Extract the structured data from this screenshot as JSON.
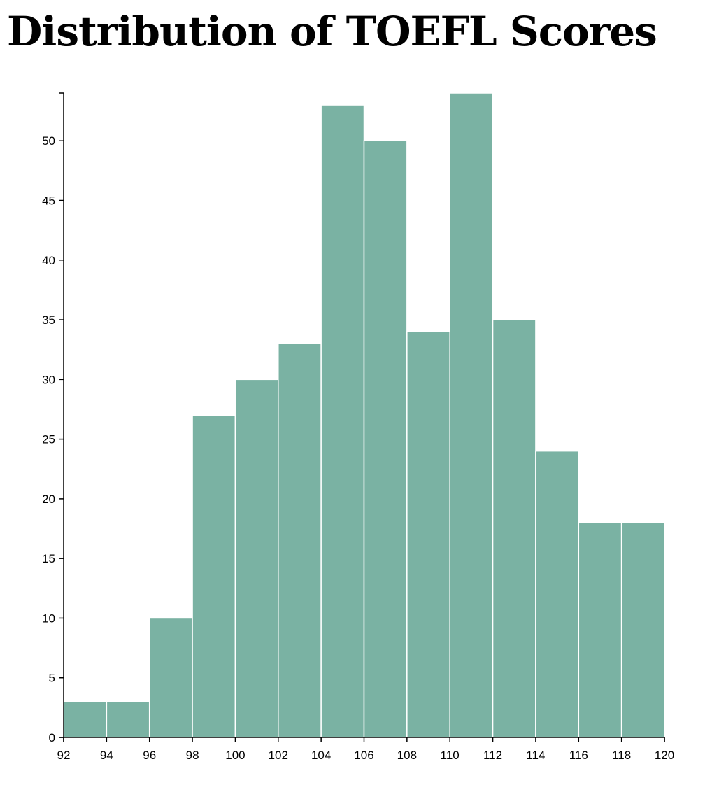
{
  "title": "Distribution of TOEFL Scores",
  "colors": {
    "bar": "#7ab2a3",
    "bar_stroke": "#ffffff",
    "axis": "#000000"
  },
  "chart_data": {
    "type": "bar",
    "title": "Distribution of TOEFL Scores",
    "xlabel": "",
    "ylabel": "",
    "bins": [
      {
        "x0": 92,
        "x1": 94,
        "count": 3
      },
      {
        "x0": 94,
        "x1": 96,
        "count": 3
      },
      {
        "x0": 96,
        "x1": 98,
        "count": 10
      },
      {
        "x0": 98,
        "x1": 100,
        "count": 27
      },
      {
        "x0": 100,
        "x1": 102,
        "count": 30
      },
      {
        "x0": 102,
        "x1": 104,
        "count": 33
      },
      {
        "x0": 104,
        "x1": 106,
        "count": 53
      },
      {
        "x0": 106,
        "x1": 108,
        "count": 50
      },
      {
        "x0": 108,
        "x1": 110,
        "count": 34
      },
      {
        "x0": 110,
        "x1": 112,
        "count": 54
      },
      {
        "x0": 112,
        "x1": 114,
        "count": 35
      },
      {
        "x0": 114,
        "x1": 116,
        "count": 24
      },
      {
        "x0": 116,
        "x1": 118,
        "count": 18
      },
      {
        "x0": 118,
        "x1": 120,
        "count": 18
      }
    ],
    "xlim": [
      92,
      120
    ],
    "ylim": [
      0,
      54
    ],
    "x_ticks": [
      "92",
      "94",
      "96",
      "98",
      "100",
      "102",
      "104",
      "106",
      "108",
      "110",
      "112",
      "114",
      "116",
      "118",
      "120"
    ],
    "y_ticks": [
      "0",
      "5",
      "10",
      "15",
      "20",
      "25",
      "30",
      "35",
      "40",
      "45",
      "50"
    ],
    "grid": false,
    "legend": "none"
  }
}
